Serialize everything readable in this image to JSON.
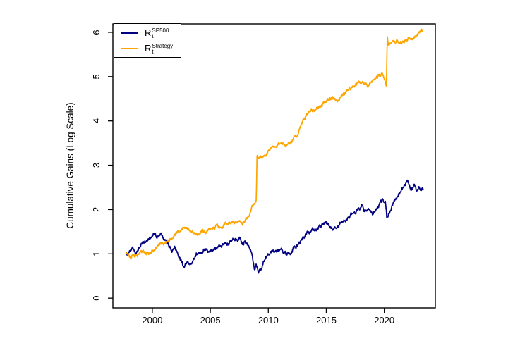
{
  "chart_data": {
    "type": "line",
    "title": "",
    "xlabel": "",
    "ylabel": "Cumulative Gains (Log Scale)",
    "x_ticks": [
      2000,
      2005,
      2010,
      2015,
      2020
    ],
    "y_ticks": [
      0,
      1,
      2,
      3,
      4,
      5,
      6
    ],
    "xlim": [
      1996.6,
      2024.4
    ],
    "ylim": [
      -0.22,
      6.19
    ],
    "grid": "off",
    "legend_position": "top-left",
    "axis_color": "#000000",
    "background_color": "#ffffff",
    "series": [
      {
        "name": "sp500",
        "label_base": "R",
        "label_sub": "t",
        "label_sup": "SP500",
        "color": "#000080",
        "points": [
          [
            1997.75,
            1.02
          ],
          [
            1998.0,
            1.0
          ],
          [
            1998.3,
            1.13
          ],
          [
            1998.6,
            1.0
          ],
          [
            1998.9,
            1.15
          ],
          [
            1999.2,
            1.25
          ],
          [
            1999.5,
            1.3
          ],
          [
            1999.8,
            1.38
          ],
          [
            2000.1,
            1.45
          ],
          [
            2000.4,
            1.36
          ],
          [
            2000.7,
            1.44
          ],
          [
            2001.0,
            1.33
          ],
          [
            2001.3,
            1.25
          ],
          [
            2001.7,
            1.05
          ],
          [
            2001.9,
            1.13
          ],
          [
            2002.2,
            1.02
          ],
          [
            2002.5,
            0.85
          ],
          [
            2002.75,
            0.68
          ],
          [
            2003.0,
            0.78
          ],
          [
            2003.15,
            0.72
          ],
          [
            2003.5,
            0.88
          ],
          [
            2003.9,
            1.05
          ],
          [
            2004.3,
            1.08
          ],
          [
            2004.7,
            1.1
          ],
          [
            2005.1,
            1.1
          ],
          [
            2005.5,
            1.15
          ],
          [
            2005.9,
            1.19
          ],
          [
            2006.3,
            1.2
          ],
          [
            2006.7,
            1.25
          ],
          [
            2007.1,
            1.29
          ],
          [
            2007.5,
            1.32
          ],
          [
            2007.8,
            1.25
          ],
          [
            2008.0,
            1.29
          ],
          [
            2008.3,
            1.15
          ],
          [
            2008.6,
            1.04
          ],
          [
            2008.8,
            0.72
          ],
          [
            2008.95,
            0.81
          ],
          [
            2009.15,
            0.55
          ],
          [
            2009.35,
            0.66
          ],
          [
            2009.6,
            0.8
          ],
          [
            2009.9,
            0.92
          ],
          [
            2010.1,
            1.0
          ],
          [
            2010.35,
            1.05
          ],
          [
            2010.55,
            0.95
          ],
          [
            2010.9,
            1.07
          ],
          [
            2011.1,
            1.12
          ],
          [
            2011.35,
            1.05
          ],
          [
            2011.65,
            0.97
          ],
          [
            2011.9,
            1.05
          ],
          [
            2012.2,
            1.15
          ],
          [
            2012.6,
            1.22
          ],
          [
            2013.0,
            1.37
          ],
          [
            2013.5,
            1.48
          ],
          [
            2014.0,
            1.56
          ],
          [
            2014.5,
            1.62
          ],
          [
            2015.0,
            1.69
          ],
          [
            2015.6,
            1.56
          ],
          [
            2016.1,
            1.62
          ],
          [
            2016.5,
            1.72
          ],
          [
            2017.0,
            1.88
          ],
          [
            2017.5,
            1.95
          ],
          [
            2018.1,
            2.07
          ],
          [
            2018.25,
            1.93
          ],
          [
            2018.7,
            2.04
          ],
          [
            2019.0,
            1.85
          ],
          [
            2019.5,
            2.1
          ],
          [
            2019.9,
            2.2
          ],
          [
            2020.1,
            2.18
          ],
          [
            2020.22,
            1.77
          ],
          [
            2020.6,
            2.05
          ],
          [
            2021.0,
            2.25
          ],
          [
            2021.5,
            2.45
          ],
          [
            2022.0,
            2.63
          ],
          [
            2022.3,
            2.45
          ],
          [
            2022.6,
            2.52
          ],
          [
            2022.8,
            2.38
          ],
          [
            2023.0,
            2.48
          ],
          [
            2023.35,
            2.46
          ]
        ]
      },
      {
        "name": "strategy",
        "label_base": "R",
        "label_sub": "t",
        "label_sup": "Strategy",
        "color": "#FFA500",
        "points": [
          [
            1997.75,
            1.0
          ],
          [
            1997.95,
            0.95
          ],
          [
            1998.15,
            0.92
          ],
          [
            1998.4,
            0.98
          ],
          [
            1998.65,
            0.95
          ],
          [
            1998.9,
            1.0
          ],
          [
            1999.2,
            1.03
          ],
          [
            1999.5,
            1.02
          ],
          [
            1999.8,
            1.06
          ],
          [
            2000.0,
            1.08
          ],
          [
            2000.3,
            1.1
          ],
          [
            2000.6,
            1.16
          ],
          [
            2000.9,
            1.2
          ],
          [
            2001.2,
            1.27
          ],
          [
            2001.5,
            1.35
          ],
          [
            2001.8,
            1.38
          ],
          [
            2002.1,
            1.45
          ],
          [
            2002.4,
            1.52
          ],
          [
            2002.7,
            1.6
          ],
          [
            2002.9,
            1.63
          ],
          [
            2003.1,
            1.55
          ],
          [
            2003.45,
            1.5
          ],
          [
            2003.8,
            1.43
          ],
          [
            2004.1,
            1.47
          ],
          [
            2004.5,
            1.52
          ],
          [
            2005.0,
            1.55
          ],
          [
            2005.5,
            1.58
          ],
          [
            2006.0,
            1.63
          ],
          [
            2006.5,
            1.69
          ],
          [
            2007.0,
            1.7
          ],
          [
            2007.4,
            1.72
          ],
          [
            2007.8,
            1.7
          ],
          [
            2008.1,
            1.8
          ],
          [
            2008.45,
            1.95
          ],
          [
            2008.7,
            2.1
          ],
          [
            2008.96,
            2.2
          ],
          [
            2009.03,
            3.15
          ],
          [
            2009.2,
            3.2
          ],
          [
            2009.5,
            3.22
          ],
          [
            2009.8,
            3.25
          ],
          [
            2010.0,
            3.35
          ],
          [
            2010.5,
            3.42
          ],
          [
            2011.0,
            3.5
          ],
          [
            2011.5,
            3.45
          ],
          [
            2012.0,
            3.55
          ],
          [
            2012.5,
            3.7
          ],
          [
            2013.0,
            4.05
          ],
          [
            2013.5,
            4.2
          ],
          [
            2014.0,
            4.25
          ],
          [
            2014.5,
            4.35
          ],
          [
            2015.0,
            4.46
          ],
          [
            2015.5,
            4.51
          ],
          [
            2016.0,
            4.46
          ],
          [
            2016.5,
            4.6
          ],
          [
            2017.0,
            4.75
          ],
          [
            2017.5,
            4.8
          ],
          [
            2018.0,
            4.85
          ],
          [
            2018.5,
            4.8
          ],
          [
            2019.0,
            4.9
          ],
          [
            2019.5,
            5.0
          ],
          [
            2019.8,
            5.05
          ],
          [
            2020.0,
            4.95
          ],
          [
            2020.18,
            4.82
          ],
          [
            2020.26,
            5.92
          ],
          [
            2020.35,
            5.72
          ],
          [
            2020.6,
            5.78
          ],
          [
            2020.9,
            5.75
          ],
          [
            2021.2,
            5.8
          ],
          [
            2021.5,
            5.77
          ],
          [
            2021.8,
            5.82
          ],
          [
            2022.1,
            5.85
          ],
          [
            2022.4,
            5.83
          ],
          [
            2022.7,
            5.9
          ],
          [
            2023.0,
            5.97
          ],
          [
            2023.2,
            6.02
          ],
          [
            2023.35,
            6.0
          ]
        ]
      }
    ]
  }
}
